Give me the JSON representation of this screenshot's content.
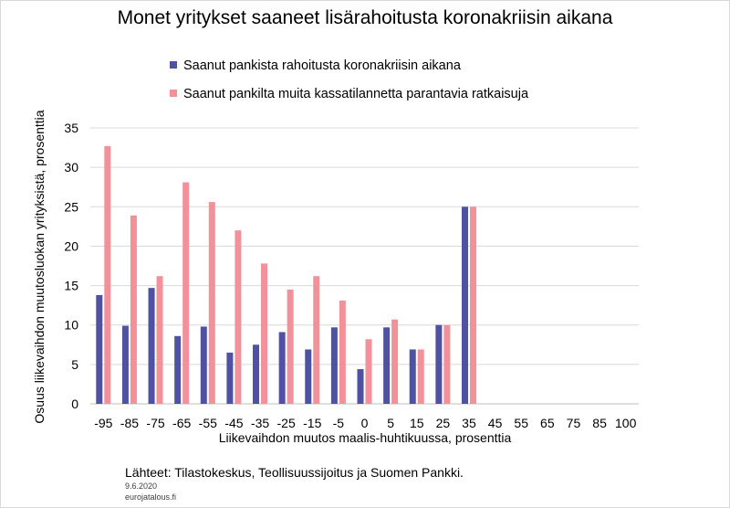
{
  "chart_data": {
    "type": "bar",
    "title": "Monet yritykset saaneet lisärahoitusta koronakriisin aikana",
    "xlabel": "Liikevaihdon muutos maalis-huhtikuussa,  prosenttia",
    "ylabel": "Osuus liikevaihdon muutosluokan yrityksistä, prosenttia",
    "categories": [
      "-95",
      "-85",
      "-75",
      "-65",
      "-55",
      "-45",
      "-35",
      "-25",
      "-15",
      "-5",
      "0",
      "5",
      "15",
      "25",
      "35",
      "45",
      "55",
      "65",
      "75",
      "85",
      "100"
    ],
    "ylim": [
      0,
      35
    ],
    "yticks": [
      "0",
      "5",
      "10",
      "15",
      "20",
      "25",
      "30",
      "35"
    ],
    "grid": true,
    "legend_position": "top",
    "series": [
      {
        "name": "Saanut pankista rahoitusta koronakriisin aikana",
        "color": "#4f51a1",
        "values": [
          13.8,
          9.9,
          14.7,
          8.6,
          9.8,
          6.5,
          7.5,
          9.1,
          6.9,
          9.7,
          4.4,
          9.7,
          6.9,
          10.0,
          25.0,
          null,
          null,
          null,
          null,
          null,
          null
        ]
      },
      {
        "name": "Saanut pankilta muita kassatilannetta parantavia ratkaisuja",
        "color": "#f2919a",
        "values": [
          32.7,
          23.9,
          16.2,
          28.1,
          25.6,
          22.0,
          17.8,
          14.5,
          16.2,
          13.1,
          8.2,
          10.7,
          6.9,
          10.0,
          25.0,
          null,
          null,
          null,
          null,
          null,
          null
        ]
      }
    ]
  },
  "footer": {
    "source": "Lähteet: Tilastokeskus, Teollisuussijoitus  ja Suomen Pankki.",
    "date": "9.6.2020",
    "site": "eurojatalous.fi"
  }
}
